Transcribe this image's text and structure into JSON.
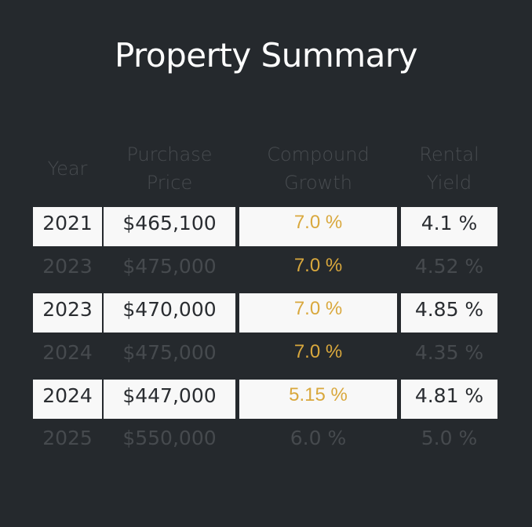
{
  "title": "Property Summary",
  "columns": {
    "year": "Year",
    "price_line1": "Purchase",
    "price_line2": "Price",
    "growth_line1": "Compound",
    "growth_line2": "Growth",
    "yield_line1": "Rental",
    "yield_line2": "Yield"
  },
  "rows": [
    {
      "year": "2021",
      "price": "$465,100",
      "growth": "7.0 %",
      "yield": "4.1 %"
    },
    {
      "year": "2023",
      "price": "$475,000",
      "growth": "7.0 %",
      "yield": "4.52 %"
    },
    {
      "year": "2023",
      "price": "$470,000",
      "growth": "7.0 %",
      "yield": "4.85 %"
    },
    {
      "year": "2024",
      "price": "$475,000",
      "growth": "7.0 %",
      "yield": "4.35 %"
    },
    {
      "year": "2024",
      "price": "$447,000",
      "growth": "5.15 %",
      "yield": "4.81 %"
    },
    {
      "year": "2025",
      "price": "$550,000",
      "growth": "6.0 %",
      "yield": "5.0 %"
    }
  ],
  "colors": {
    "background": "#25292d",
    "highlight_row": "#f8f8f8",
    "growth_accent": "#d9a83d",
    "dim_text": "#464a4e"
  }
}
